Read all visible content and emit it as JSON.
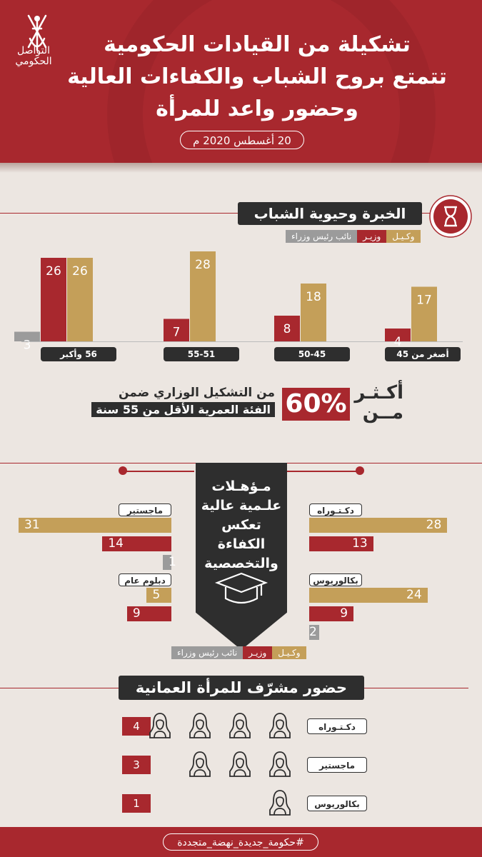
{
  "header": {
    "title_lines": [
      "تشكيلة من القيادات الحكومية",
      "تتمتع بروح الشباب والكفاءات العالية",
      "وحضور واعد للمرأة"
    ],
    "date": "20 أغسطس 2020 م",
    "logo_text_1": "التواصل",
    "logo_text_2": "الحكومي"
  },
  "legend": {
    "gold": "وكـيـل",
    "red": "وزيـر",
    "gray": "نائب رئيس وزراء"
  },
  "colors": {
    "gold": "#c49f59",
    "red": "#a8282e",
    "gray": "#9b9b9b",
    "dark": "#2e2e2e"
  },
  "section1": {
    "title": "الخبرة وحيوية الشباب",
    "icon": "hourglass-icon"
  },
  "chart_data": [
    {
      "type": "bar",
      "title": "الخبرة وحيوية الشباب",
      "categories": [
        "أصغر من 45",
        "50-45",
        "55-51",
        "56 وأكبر"
      ],
      "series": [
        {
          "name": "وكـيـل",
          "values": [
            17,
            18,
            28,
            26
          ]
        },
        {
          "name": "وزيـر",
          "values": [
            4,
            8,
            7,
            26
          ]
        },
        {
          "name": "نائب رئيس وزراء",
          "values": [
            null,
            null,
            null,
            3
          ]
        }
      ],
      "ylim": [
        0,
        30
      ],
      "grid": false,
      "legend": "top-right"
    },
    {
      "type": "bar",
      "title": "مـؤهـلات علـمية عالية تعكس الكفاءة والتخصصية",
      "orientation": "horizontal",
      "categories": [
        "دكـتـوراه",
        "بكالوريوس",
        "ماجستير",
        "دبلوم عام"
      ],
      "series": [
        {
          "name": "وكـيـل",
          "values": [
            28,
            24,
            31,
            5
          ]
        },
        {
          "name": "وزيـر",
          "values": [
            13,
            9,
            14,
            9
          ]
        },
        {
          "name": "نائب رئيس وزراء",
          "values": [
            null,
            2,
            1,
            null
          ]
        }
      ],
      "xlim": [
        0,
        31
      ],
      "legend": "bottom-right"
    }
  ],
  "stat": {
    "more": "أكـثـر",
    "from": "مــن",
    "percent": "60%",
    "line1": "من التشكيل الوزاري ضمن",
    "line2": "الفئة العمرية الأقل من 55 سنة"
  },
  "section2": {
    "title_lines": [
      "مـؤهـلات",
      "علـمية عالية",
      "تعكس الكفاءة",
      "والتخصصية"
    ],
    "icon": "graduation-cap-icon"
  },
  "women": {
    "title": "حضور مشرّف للمرأة العمانية",
    "icon": "woman-icon",
    "rows": [
      {
        "label": "دكـتـوراه",
        "count": "4"
      },
      {
        "label": "ماجستير",
        "count": "3"
      },
      {
        "label": "بكالوريوس",
        "count": "1"
      }
    ]
  },
  "footer": {
    "hashtag": "#حكومة_جديدة_نهضة_متجددة"
  }
}
